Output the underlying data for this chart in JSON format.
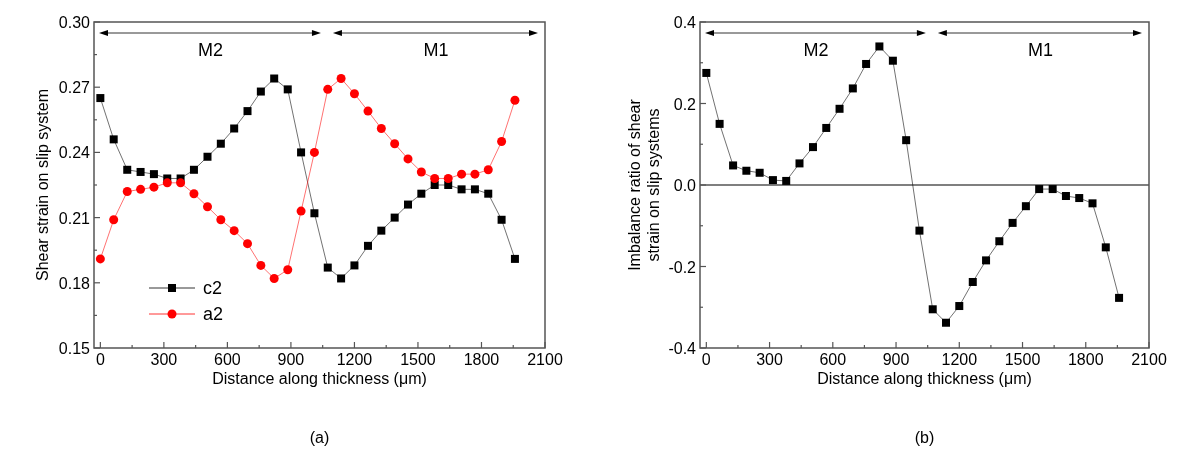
{
  "chart_data": [
    {
      "type": "line",
      "xlabel": "Distance along thickness (μm)",
      "ylabel": "Shear strain on slip system",
      "xlim": [
        -30,
        2100
      ],
      "ylim": [
        0.15,
        0.3
      ],
      "xticks": [
        0,
        {
          "value": 150,
          "label": null
        },
        300,
        {
          "value": 450,
          "label": null
        },
        600,
        {
          "value": 750,
          "label": null
        },
        900,
        {
          "value": 1050,
          "label": null
        },
        1200,
        {
          "value": 1350,
          "label": null
        },
        1500,
        {
          "value": 1650,
          "label": null
        },
        1800,
        {
          "value": 1950,
          "label": null
        },
        2100
      ],
      "yticks": [
        {
          "value": 0.15,
          "label": "0.15"
        },
        {
          "value": 0.165,
          "label": null
        },
        {
          "value": 0.18,
          "label": "0.18"
        },
        {
          "value": 0.195,
          "label": null
        },
        {
          "value": 0.21,
          "label": "0.21"
        },
        {
          "value": 0.225,
          "label": null
        },
        {
          "value": 0.24,
          "label": "0.24"
        },
        {
          "value": 0.255,
          "label": null
        },
        {
          "value": 0.27,
          "label": "0.27"
        },
        {
          "value": 0.285,
          "label": null
        },
        {
          "value": 0.3,
          "label": "0.30"
        }
      ],
      "x": [
        0,
        63,
        127,
        190,
        253,
        316,
        379,
        442,
        506,
        569,
        632,
        695,
        758,
        821,
        885,
        948,
        1011,
        1074,
        1137,
        1200,
        1264,
        1327,
        1390,
        1453,
        1516,
        1579,
        1643,
        1706,
        1769,
        1832,
        1895,
        1958
      ],
      "series": [
        {
          "name": "c2",
          "color": "#000000",
          "marker": "square",
          "values": [
            0.265,
            0.246,
            0.232,
            0.231,
            0.23,
            0.228,
            0.228,
            0.232,
            0.238,
            0.244,
            0.251,
            0.259,
            0.268,
            0.274,
            0.269,
            0.24,
            0.212,
            0.187,
            0.182,
            0.188,
            0.197,
            0.204,
            0.21,
            0.216,
            0.221,
            0.225,
            0.225,
            0.223,
            0.223,
            0.221,
            0.209,
            0.191
          ]
        },
        {
          "name": "a2",
          "color": "#ff0000",
          "marker": "circle",
          "values": [
            0.191,
            0.209,
            0.222,
            0.223,
            0.224,
            0.226,
            0.226,
            0.221,
            0.215,
            0.209,
            0.204,
            0.198,
            0.188,
            0.182,
            0.186,
            0.213,
            0.24,
            0.269,
            0.274,
            0.267,
            0.259,
            0.251,
            0.244,
            0.237,
            0.231,
            0.228,
            0.228,
            0.23,
            0.23,
            0.232,
            0.245,
            0.264
          ]
        }
      ],
      "legend": "bottom left",
      "grid": false,
      "annotations": [
        "M2",
        "M1",
        "(a)"
      ]
    },
    {
      "type": "line",
      "xlabel": "Distance along thickness (μm)",
      "ylabel": "Imbalance ratio of shear\nstrain on slip systems",
      "xlim": [
        -30,
        2100
      ],
      "ylim": [
        -0.4,
        0.4
      ],
      "xticks": [
        0,
        {
          "value": 150,
          "label": null
        },
        300,
        {
          "value": 450,
          "label": null
        },
        600,
        {
          "value": 750,
          "label": null
        },
        900,
        {
          "value": 1050,
          "label": null
        },
        1200,
        {
          "value": 1350,
          "label": null
        },
        1500,
        {
          "value": 1650,
          "label": null
        },
        1800,
        {
          "value": 1950,
          "label": null
        },
        2100
      ],
      "yticks": [
        -0.4,
        {
          "value": -0.3,
          "label": null
        },
        -0.2,
        {
          "value": -0.1,
          "label": null
        },
        {
          "value": 0,
          "label": "0.0"
        },
        {
          "value": 0.1,
          "label": null
        },
        0.2,
        {
          "value": 0.3,
          "label": null
        },
        0.4
      ],
      "x": [
        0,
        63,
        127,
        190,
        253,
        316,
        379,
        442,
        506,
        569,
        632,
        695,
        758,
        821,
        885,
        948,
        1011,
        1074,
        1137,
        1200,
        1264,
        1327,
        1390,
        1453,
        1516,
        1579,
        1643,
        1706,
        1769,
        1832,
        1895,
        1958
      ],
      "series": [
        {
          "color": "#000000",
          "marker": "square",
          "values": [
            0.275,
            0.15,
            0.048,
            0.035,
            0.03,
            0.012,
            0.01,
            0.053,
            0.093,
            0.14,
            0.187,
            0.237,
            0.297,
            0.34,
            0.305,
            0.11,
            -0.112,
            -0.305,
            -0.338,
            -0.297,
            -0.238,
            -0.185,
            -0.138,
            -0.093,
            -0.052,
            -0.01,
            -0.01,
            -0.027,
            -0.032,
            -0.045,
            -0.153,
            -0.277
          ]
        }
      ],
      "ref_lines": [
        {
          "axis": "y",
          "value": 0,
          "color": "#000000"
        }
      ],
      "legend": false,
      "grid": false,
      "annotations": [
        "M2",
        "M1",
        "(b)"
      ]
    }
  ]
}
